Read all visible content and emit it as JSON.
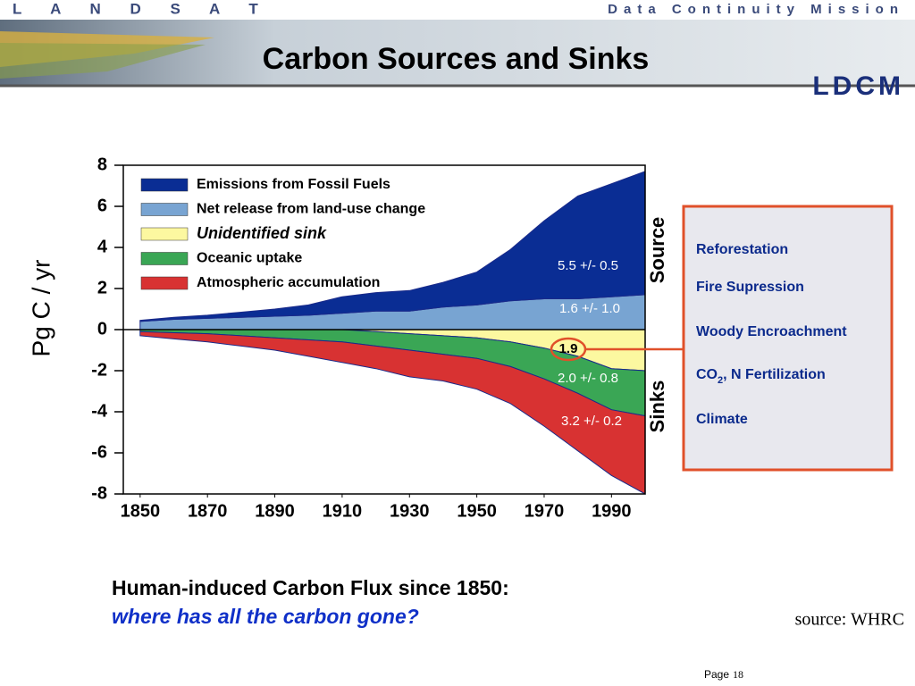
{
  "header": {
    "left": "L A N D S A T",
    "right": "Data Continuity Mission",
    "logo": "LDCM",
    "title": "Carbon Sources and Sinks"
  },
  "chart_data": {
    "type": "area",
    "y_label": "Pg C / yr",
    "x": [
      1850,
      1860,
      1870,
      1880,
      1890,
      1900,
      1910,
      1920,
      1930,
      1940,
      1950,
      1960,
      1970,
      1980,
      1990,
      2000
    ],
    "xlim": [
      1845,
      2000
    ],
    "xticks": [
      1850,
      1870,
      1890,
      1910,
      1930,
      1950,
      1970,
      1990
    ],
    "ylim": [
      -8,
      8
    ],
    "yticks": [
      8,
      6,
      4,
      2,
      0,
      -2,
      -4,
      -6,
      -8
    ],
    "series": [
      {
        "name": "Emissions from Fossil Fuels",
        "color": "#0a2d94",
        "values": [
          0.05,
          0.1,
          0.15,
          0.25,
          0.35,
          0.5,
          0.8,
          0.9,
          1.0,
          1.2,
          1.6,
          2.5,
          3.8,
          5.0,
          5.5,
          6.0
        ]
      },
      {
        "name": "Net release from land-use change",
        "color": "#78a4d2",
        "values": [
          0.4,
          0.5,
          0.55,
          0.6,
          0.65,
          0.7,
          0.8,
          0.9,
          0.9,
          1.1,
          1.2,
          1.4,
          1.5,
          1.5,
          1.6,
          1.7
        ]
      },
      {
        "name": "Unidentified sink",
        "color": "#fcf8a0",
        "values": [
          0,
          0,
          0,
          0,
          0,
          0,
          0.0,
          -0.1,
          -0.2,
          -0.3,
          -0.4,
          -0.6,
          -0.9,
          -1.3,
          -1.9,
          -2.0
        ]
      },
      {
        "name": "Oceanic uptake",
        "color": "#3aa655",
        "values": [
          -0.1,
          -0.15,
          -0.2,
          -0.3,
          -0.4,
          -0.5,
          -0.6,
          -0.7,
          -0.8,
          -0.9,
          -1.0,
          -1.2,
          -1.5,
          -1.8,
          -2.0,
          -2.2
        ]
      },
      {
        "name": "Atmospheric accumulation",
        "color": "#d83232",
        "values": [
          -0.2,
          -0.3,
          -0.4,
          -0.5,
          -0.6,
          -0.8,
          -1.0,
          -1.1,
          -1.3,
          -1.3,
          -1.5,
          -1.8,
          -2.3,
          -2.8,
          -3.2,
          -3.8
        ]
      }
    ],
    "annotations": {
      "fossil": "5.5 +/- 0.5",
      "land_use": "1.6 +/- 1.0",
      "unidentified": "1.9",
      "ocean": "2.0 +/- 0.8",
      "atmosphere": "3.2 +/- 0.2",
      "source": "Source",
      "sinks": "Sinks"
    }
  },
  "sink_box": {
    "items": [
      "Reforestation",
      "Fire Supression",
      "Woody Encroachment",
      {
        "main": "CO",
        "sub": "2",
        "rest": ", N Fertilization"
      },
      "Climate"
    ]
  },
  "caption": {
    "line1": "Human-induced Carbon Flux since 1850:",
    "line2": "where has all the carbon gone?"
  },
  "source": "source: WHRC",
  "footer": {
    "page_word": "Page",
    "page_number": "18"
  }
}
